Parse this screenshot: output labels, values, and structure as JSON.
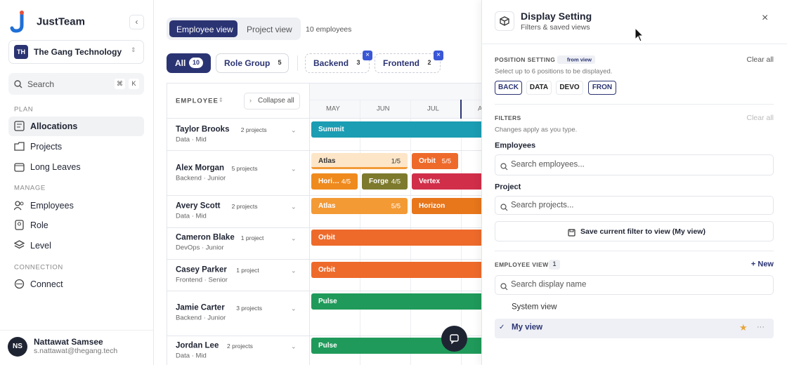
{
  "sidebar": {
    "brand": "JustTeam",
    "org": {
      "initials": "TH",
      "name": "The Gang Technology"
    },
    "search": {
      "placeholder": "Search",
      "shortcut": [
        "⌘",
        "K"
      ]
    },
    "sections": [
      {
        "title": "PLAN",
        "items": [
          "Allocations",
          "Projects",
          "Long Leaves"
        ]
      },
      {
        "title": "MANAGE",
        "items": [
          "Employees",
          "Role",
          "Level"
        ]
      },
      {
        "title": "CONNECTION",
        "items": [
          "Connect"
        ]
      }
    ],
    "user": {
      "initials": "NS",
      "name": "Nattawat Samsee",
      "email": "s.nattawat@thegang.tech"
    }
  },
  "main": {
    "tabs": [
      "Employee view",
      "Project view"
    ],
    "count": "10 employees",
    "filters": [
      {
        "label": "All",
        "count": "10"
      },
      {
        "label": "Role Group",
        "count": "5"
      },
      {
        "label": "Backend",
        "count": "3"
      },
      {
        "label": "Frontend",
        "count": "2"
      }
    ],
    "table": {
      "header": "EMPLOYEE",
      "collapse": "Collapse all",
      "months": [
        "MAY",
        "JUN",
        "JUL",
        "AUG"
      ],
      "rows": [
        {
          "name": "Taylor Brooks",
          "projects": "2 projects",
          "role": "Data · Mid",
          "bars": [
            {
              "label": "Summit",
              "ratio": null,
              "color": "#1b9db3"
            }
          ]
        },
        {
          "name": "Alex Morgan",
          "projects": "5 projects",
          "role": "Backend · Junior",
          "bars": [
            {
              "label": "Atlas",
              "ratio": "1/5",
              "color": "#fde6c8"
            },
            {
              "label": "Orbit",
              "ratio": "5/5",
              "color": "#ee6a2b"
            },
            {
              "label": "Hori…",
              "ratio": "4/5",
              "color": "#ef8a1e"
            },
            {
              "label": "Forge",
              "ratio": "4/5",
              "color": "#7d7a2d"
            },
            {
              "label": "Vertex",
              "ratio": null,
              "color": "#d12e4a"
            }
          ]
        },
        {
          "name": "Avery Scott",
          "projects": "2 projects",
          "role": "Data · Mid",
          "bars": [
            {
              "label": "Atlas",
              "ratio": "5/5",
              "color": "#f39a35"
            },
            {
              "label": "Horizon",
              "ratio": null,
              "color": "#e8761b"
            }
          ]
        },
        {
          "name": "Cameron Blake",
          "projects": "1 project",
          "role": "DevOps · Junior",
          "bars": [
            {
              "label": "Orbit",
              "ratio": null,
              "color": "#ee6a2b"
            }
          ]
        },
        {
          "name": "Casey Parker",
          "projects": "1 project",
          "role": "Frontend · Senior",
          "bars": [
            {
              "label": "Orbit",
              "ratio": null,
              "color": "#ee6a2b"
            }
          ]
        },
        {
          "name": "Jamie Carter",
          "projects": "3 projects",
          "role": "Backend · Junior",
          "bars": [
            {
              "label": "Pulse",
              "ratio": null,
              "color": "#1f9a5a"
            }
          ]
        },
        {
          "name": "Jordan Lee",
          "projects": "2 projects",
          "role": "Data · Mid",
          "bars": [
            {
              "label": "Pulse",
              "ratio": null,
              "color": "#1f9a5a"
            }
          ]
        }
      ]
    }
  },
  "panel": {
    "title": "Display Setting",
    "subtitle": "Filters & saved views",
    "position": {
      "title": "POSITION SETTING",
      "badge": "from view",
      "clear": "Clear all",
      "hint": "Select up to 6 positions to be displayed.",
      "chips": [
        "BACK",
        "DATA",
        "DEVO",
        "FRON"
      ]
    },
    "filters": {
      "title": "FILTERS",
      "clear": "Clear all",
      "hint": "Changes apply as you type.",
      "employees_label": "Employees",
      "employees_placeholder": "Search employees...",
      "project_label": "Project",
      "project_placeholder": "Search projects...",
      "save": "Save current filter to view (My view)"
    },
    "views": {
      "title": "EMPLOYEE VIEW",
      "count": "1",
      "new": "+ New",
      "placeholder": "Search display name",
      "items": [
        "System view",
        "My view"
      ]
    }
  }
}
